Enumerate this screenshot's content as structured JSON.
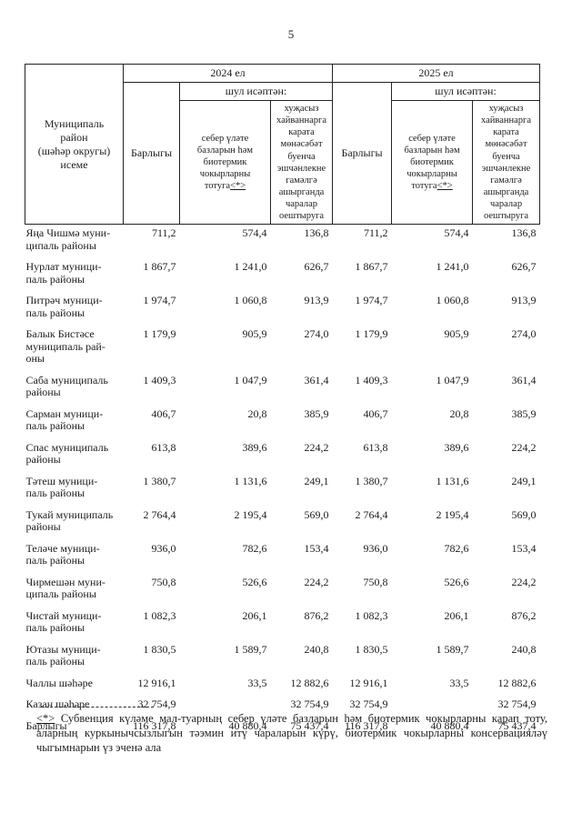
{
  "page": {
    "number": "5"
  },
  "table": {
    "header": {
      "name_column": "Муниципаль\nрайон\n(шәһәр округы)\nисеме",
      "year_groups": [
        {
          "label": "2024 ел"
        },
        {
          "label": "2025 ел"
        }
      ],
      "total_label": "Барлыгы",
      "including_label": "шул исәптән:",
      "sub1_label": "себер үләте базларын һәм биотермик чокырларны тотуга",
      "sub1_marker": "<*>",
      "sub2_label": "хуҗасыз хайваннарга карата мөнәсәбәт буенча эшчәнлекне гамәлгә ашырганда чаралар оештыруга"
    },
    "rows": [
      {
        "name": "Яңа Чишмә муни-\nципаль районы",
        "values": [
          "711,2",
          "574,4",
          "136,8",
          "711,2",
          "574,4",
          "136,8"
        ]
      },
      {
        "name": "Нурлат муници-\nпаль районы",
        "values": [
          "1 867,7",
          "1 241,0",
          "626,7",
          "1 867,7",
          "1 241,0",
          "626,7"
        ]
      },
      {
        "name": "Питрәч муници-\nпаль районы",
        "values": [
          "1 974,7",
          "1 060,8",
          "913,9",
          "1 974,7",
          "1 060,8",
          "913,9"
        ]
      },
      {
        "name": "Балык Бистәсе\nмуниципаль рай-\nоны",
        "values": [
          "1 179,9",
          "905,9",
          "274,0",
          "1 179,9",
          "905,9",
          "274,0"
        ]
      },
      {
        "name": "Саба муниципаль\nрайоны",
        "values": [
          "1 409,3",
          "1 047,9",
          "361,4",
          "1 409,3",
          "1 047,9",
          "361,4"
        ]
      },
      {
        "name": "Сарман муници-\nпаль районы",
        "values": [
          "406,7",
          "20,8",
          "385,9",
          "406,7",
          "20,8",
          "385,9"
        ]
      },
      {
        "name": "Спас муниципаль\nрайоны",
        "values": [
          "613,8",
          "389,6",
          "224,2",
          "613,8",
          "389,6",
          "224,2"
        ]
      },
      {
        "name": "Тәтеш муници-\nпаль районы",
        "values": [
          "1 380,7",
          "1 131,6",
          "249,1",
          "1 380,7",
          "1 131,6",
          "249,1"
        ]
      },
      {
        "name": "Тукай муниципаль\nрайоны",
        "values": [
          "2 764,4",
          "2 195,4",
          "569,0",
          "2 764,4",
          "2 195,4",
          "569,0"
        ]
      },
      {
        "name": "Теләче муници-\nпаль районы",
        "values": [
          "936,0",
          "782,6",
          "153,4",
          "936,0",
          "782,6",
          "153,4"
        ]
      },
      {
        "name": "Чирмешән муни-\nципаль районы",
        "values": [
          "750,8",
          "526,6",
          "224,2",
          "750,8",
          "526,6",
          "224,2"
        ]
      },
      {
        "name": "Чистай муници-\nпаль районы",
        "values": [
          "1 082,3",
          "206,1",
          "876,2",
          "1 082,3",
          "206,1",
          "876,2"
        ]
      },
      {
        "name": "Ютазы муници-\nпаль районы",
        "values": [
          "1 830,5",
          "1 589,7",
          "240,8",
          "1 830,5",
          "1 589,7",
          "240,8"
        ]
      },
      {
        "name": "Чаллы шәһәре",
        "values": [
          "12 916,1",
          "33,5",
          "12 882,6",
          "12 916,1",
          "33,5",
          "12 882,6"
        ]
      },
      {
        "name": "Казан шәһәре",
        "values": [
          "32 754,9",
          "",
          "32 754,9",
          "32 754,9",
          "",
          "32 754,9"
        ]
      },
      {
        "name": "Барлыгы",
        "values": [
          "116 317,8",
          "40 880,4",
          "75 437,4",
          "116 317,8",
          "40 880,4",
          "75 437,4"
        ]
      }
    ]
  },
  "footnote": {
    "marker": "<*>",
    "text": "Субвенция күләме мал-туарның себер үләте базларын  һәм биотермик чокырларны карап тоту, аларның куркынычсызлыгын тәэмин итү чараларын күрү, биотермик чокырларны консервацияләү чыгымнарын үз эченә ала"
  }
}
